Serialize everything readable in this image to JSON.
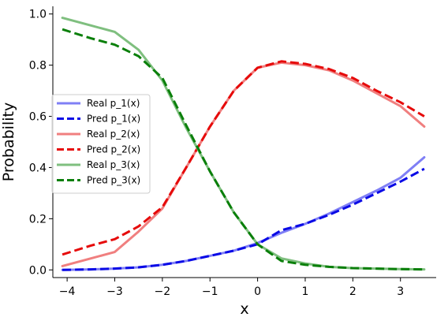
{
  "chart_data": {
    "type": "line",
    "title": "",
    "xlabel": "x",
    "ylabel": "Probability",
    "xlim": [
      -4.3,
      3.75
    ],
    "ylim": [
      -0.03,
      1.03
    ],
    "xticks": [
      -4,
      -3,
      -2,
      -1,
      0,
      1,
      2,
      3
    ],
    "xtick_labels": [
      "−4",
      "−3",
      "−2",
      "−1",
      "0",
      "1",
      "2",
      "3"
    ],
    "yticks": [
      0.0,
      0.2,
      0.4,
      0.6,
      0.8,
      1.0
    ],
    "ytick_labels": [
      "0.0",
      "0.2",
      "0.4",
      "0.6",
      "0.8",
      "1.0"
    ],
    "grid": false,
    "legend_position": "center-left",
    "x": [
      -4.1,
      -3.5,
      -3.0,
      -2.5,
      -2.0,
      -1.5,
      -1.0,
      -0.5,
      0.0,
      0.5,
      1.0,
      1.5,
      2.0,
      2.5,
      3.0,
      3.5
    ],
    "series": [
      {
        "name": "Real p_1(x)",
        "color": "#7f7ff5",
        "dash": "solid",
        "values": [
          0.0,
          0.002,
          0.005,
          0.01,
          0.02,
          0.035,
          0.055,
          0.075,
          0.105,
          0.145,
          0.18,
          0.22,
          0.265,
          0.31,
          0.36,
          0.44
        ]
      },
      {
        "name": "Pred p_1(x)",
        "color": "#0a0ae6",
        "dash": "dashed",
        "values": [
          0.0,
          0.002,
          0.005,
          0.01,
          0.02,
          0.035,
          0.055,
          0.075,
          0.1,
          0.155,
          0.18,
          0.215,
          0.255,
          0.3,
          0.345,
          0.395
        ]
      },
      {
        "name": "Real p_2(x)",
        "color": "#f07f7f",
        "dash": "solid",
        "values": [
          0.015,
          0.045,
          0.07,
          0.15,
          0.24,
          0.4,
          0.56,
          0.7,
          0.79,
          0.81,
          0.8,
          0.78,
          0.74,
          0.69,
          0.64,
          0.56
        ]
      },
      {
        "name": "Pred p_2(x)",
        "color": "#e60a0a",
        "dash": "dashed",
        "values": [
          0.06,
          0.095,
          0.12,
          0.17,
          0.245,
          0.4,
          0.56,
          0.7,
          0.79,
          0.815,
          0.805,
          0.785,
          0.75,
          0.7,
          0.655,
          0.6
        ]
      },
      {
        "name": "Real p_3(x)",
        "color": "#7fbf7f",
        "dash": "solid",
        "values": [
          0.985,
          0.955,
          0.93,
          0.86,
          0.74,
          0.555,
          0.385,
          0.225,
          0.1,
          0.045,
          0.025,
          0.012,
          0.007,
          0.005,
          0.003,
          0.002
        ]
      },
      {
        "name": "Pred p_3(x)",
        "color": "#0a7f0a",
        "dash": "dashed",
        "values": [
          0.94,
          0.905,
          0.88,
          0.835,
          0.75,
          0.565,
          0.385,
          0.225,
          0.1,
          0.035,
          0.02,
          0.012,
          0.007,
          0.005,
          0.003,
          0.002
        ]
      }
    ]
  }
}
